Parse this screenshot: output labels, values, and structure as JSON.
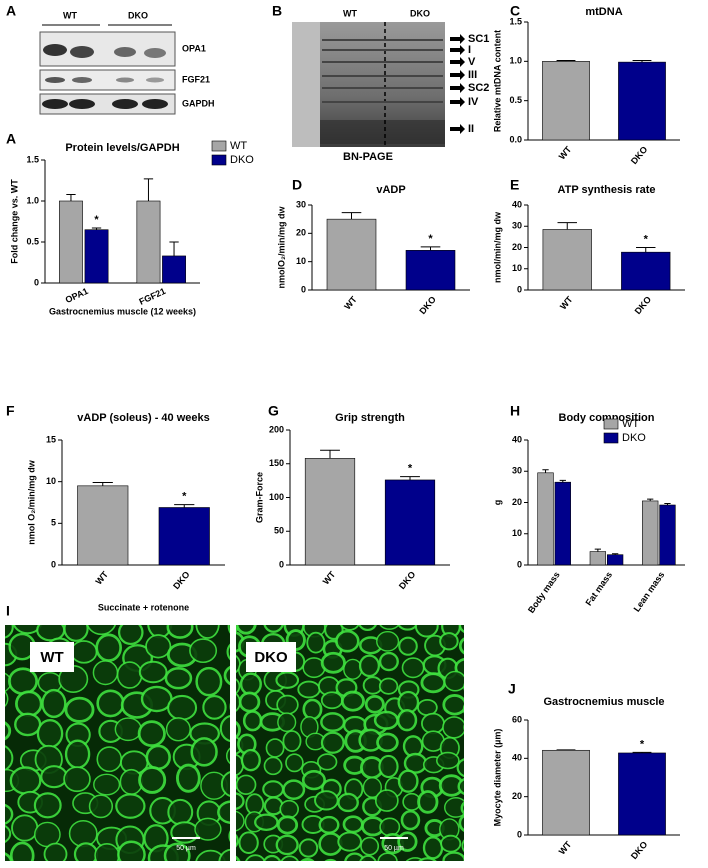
{
  "blot": {
    "panel": "A",
    "columns": [
      "WT",
      "DKO"
    ],
    "bands": [
      "OPA1",
      "FGF21",
      "GAPDH"
    ]
  },
  "gel": {
    "panel": "B",
    "columns": [
      "WT",
      "DKO"
    ],
    "bands": [
      "SC1",
      "I",
      "V",
      "III",
      "SC2",
      "IV",
      "II"
    ],
    "caption": "BN-PAGE"
  },
  "micrographs": {
    "panel": "I",
    "images": [
      {
        "label": "WT",
        "scale": "50 µm"
      },
      {
        "label": "DKO",
        "scale": "50 µm"
      }
    ]
  },
  "chart_data": [
    {
      "type": "grouped_bar",
      "panel": "A",
      "title": "Protein levels/GAPDH",
      "ylabel": "Fold change vs. WT",
      "xlabel": "Gastrocnemius muscle (12 weeks)",
      "categories": [
        "OPA1",
        "FGF21"
      ],
      "series": [
        {
          "name": "WT",
          "color": "#a6a6a6",
          "values": [
            1.0,
            1.0
          ],
          "errors": [
            0.08,
            0.27
          ]
        },
        {
          "name": "DKO",
          "color": "#00008b",
          "values": [
            0.65,
            0.33
          ],
          "errors": [
            0.02,
            0.17
          ]
        }
      ],
      "ylim": [
        0,
        1.5
      ],
      "yticks": [
        0,
        0.5,
        {
          "value": 1,
          "label": "1.0"
        },
        1.5
      ],
      "legend": "upper right",
      "annotations": [
        {
          "text": "*",
          "series": 1,
          "index": 0
        }
      ]
    },
    {
      "type": "bar",
      "panel": "C",
      "title": "mtDNA",
      "ylabel": "Relative mtDNA content",
      "categories": [
        "WT",
        "DKO"
      ],
      "values": [
        1.0,
        0.99
      ],
      "errors": [
        0.01,
        0.02
      ],
      "colors": [
        "#a6a6a6",
        "#00008b"
      ],
      "ylim": [
        0,
        1.5
      ],
      "yticks": [
        {
          "value": 0,
          "label": "0.0"
        },
        0.5,
        {
          "value": 1,
          "label": "1.0"
        },
        1.5
      ]
    },
    {
      "type": "bar",
      "panel": "D",
      "title": "vADP",
      "ylabel": "nmolO₂/min/mg dw",
      "categories": [
        "WT",
        "DKO"
      ],
      "values": [
        25,
        14
      ],
      "errors": [
        2.3,
        1.2
      ],
      "colors": [
        "#a6a6a6",
        "#00008b"
      ],
      "ylim": [
        0,
        30
      ],
      "yticks": [
        0,
        10,
        20,
        30
      ],
      "annotations": [
        {
          "text": "*",
          "index": 1
        }
      ]
    },
    {
      "type": "bar",
      "panel": "E",
      "title": "ATP synthesis rate",
      "ylabel": "nmol/min/mg dw",
      "categories": [
        "WT",
        "DKO"
      ],
      "values": [
        28.5,
        17.8
      ],
      "errors": [
        3.2,
        2.2
      ],
      "colors": [
        "#a6a6a6",
        "#00008b"
      ],
      "ylim": [
        0,
        40
      ],
      "yticks": [
        0,
        10,
        20,
        30,
        40
      ],
      "annotations": [
        {
          "text": "*",
          "index": 1
        }
      ]
    },
    {
      "type": "bar",
      "panel": "F",
      "title": "vADP (soleus) - 40 weeks",
      "ylabel": "nmol O₂/min/mg dw",
      "xlabel": "Succinate + rotenone",
      "categories": [
        "WT",
        "DKO"
      ],
      "values": [
        9.5,
        6.9
      ],
      "errors": [
        0.4,
        0.35
      ],
      "colors": [
        "#a6a6a6",
        "#00008b"
      ],
      "ylim": [
        0,
        15
      ],
      "yticks": [
        0,
        5,
        10,
        15
      ],
      "annotations": [
        {
          "text": "*",
          "index": 1
        }
      ]
    },
    {
      "type": "bar",
      "panel": "G",
      "title": "Grip strength",
      "ylabel": "Gram-Force",
      "categories": [
        "WT",
        "DKO"
      ],
      "values": [
        158,
        126
      ],
      "errors": [
        12,
        5
      ],
      "colors": [
        "#a6a6a6",
        "#00008b"
      ],
      "ylim": [
        0,
        200
      ],
      "yticks": [
        0,
        50,
        100,
        150,
        200
      ],
      "annotations": [
        {
          "text": "*",
          "index": 1
        }
      ]
    },
    {
      "type": "grouped_bar",
      "panel": "H",
      "title": "Body composition",
      "ylabel": "g",
      "categories": [
        "Body mass",
        "Fat mass",
        "Lean mass"
      ],
      "series": [
        {
          "name": "WT",
          "color": "#a6a6a6",
          "values": [
            29.5,
            4.3,
            20.5
          ],
          "errors": [
            1.0,
            0.8,
            0.6
          ]
        },
        {
          "name": "DKO",
          "color": "#00008b",
          "values": [
            26.5,
            3.3,
            19.2
          ],
          "errors": [
            0.6,
            0.3,
            0.5
          ]
        }
      ],
      "ylim": [
        0,
        40
      ],
      "yticks": [
        0,
        10,
        20,
        30,
        40
      ],
      "legend": "upper right"
    },
    {
      "type": "bar",
      "panel": "J",
      "title": "Gastrocnemius muscle",
      "ylabel": "Myocyte diameter (µm)",
      "categories": [
        "WT",
        "DKO"
      ],
      "values": [
        44.2,
        42.8
      ],
      "errors": [
        0.2,
        0.3
      ],
      "colors": [
        "#a6a6a6",
        "#00008b"
      ],
      "ylim": [
        0,
        60
      ],
      "yticks": [
        0,
        20,
        40,
        60
      ],
      "annotations": [
        {
          "text": "*",
          "index": 1
        }
      ]
    }
  ]
}
